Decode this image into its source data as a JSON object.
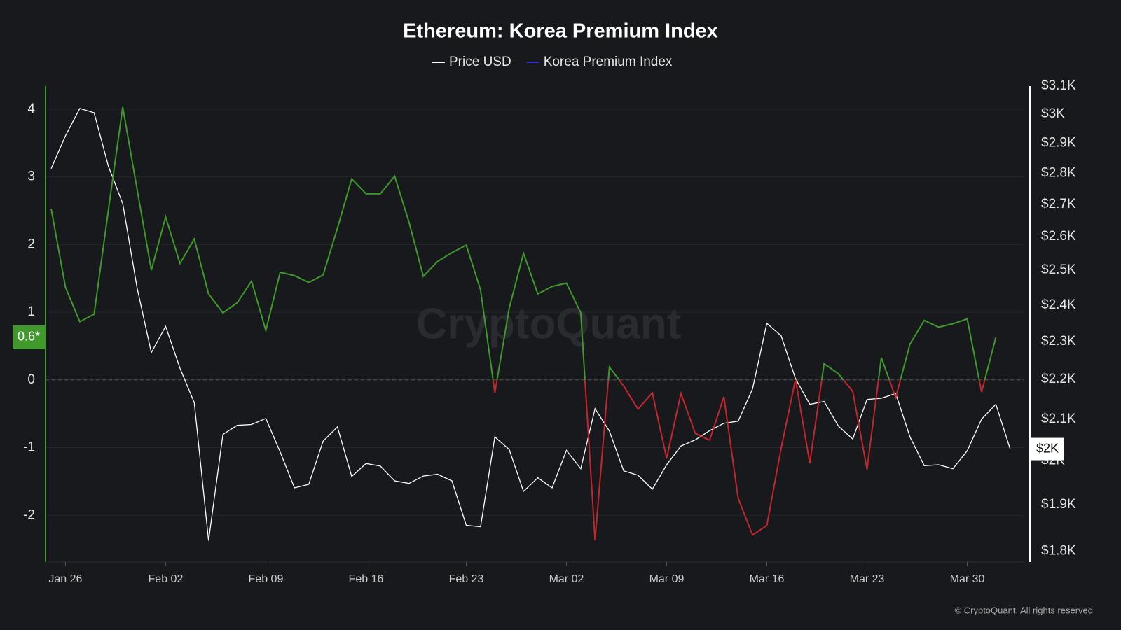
{
  "chart_data": {
    "type": "line",
    "title": "Ethereum: Korea Premium Index",
    "watermark": "CryptoQuant",
    "footer": "© CryptoQuant. All rights reserved",
    "categories": [
      null,
      "Jan 26",
      null,
      null,
      null,
      null,
      null,
      null,
      "Feb 02",
      null,
      null,
      null,
      null,
      null,
      null,
      "Feb 09",
      null,
      null,
      null,
      null,
      null,
      null,
      "Feb 16",
      null,
      null,
      null,
      null,
      null,
      null,
      "Feb 23",
      null,
      null,
      null,
      null,
      null,
      null,
      "Mar 02",
      null,
      null,
      null,
      null,
      null,
      null,
      "Mar 09",
      null,
      null,
      null,
      null,
      null,
      null,
      "Mar 16",
      null,
      null,
      null,
      null,
      null,
      null,
      "Mar 23",
      null,
      null,
      null,
      null,
      null,
      null,
      "Mar 30",
      null,
      null,
      null
    ],
    "series": [
      {
        "name": "Price USD",
        "color": "#ffffff",
        "axis": "y2",
        "current_label": "$2K",
        "values": [
          2815,
          2925,
          3020,
          3005,
          2823,
          2702,
          2449,
          2270,
          2341,
          2229,
          2141,
          1822,
          2063,
          2085,
          2087,
          2102,
          2021,
          1938,
          1946,
          2047,
          2081,
          1964,
          1994,
          1988,
          1954,
          1948,
          1965,
          1969,
          1954,
          1855,
          1852,
          2057,
          2027,
          1930,
          1961,
          1938,
          2025,
          1982,
          2126,
          2071,
          1977,
          1967,
          1935,
          1991,
          2035,
          2050,
          2072,
          2090,
          2095,
          2176,
          2349,
          2315,
          2202,
          2137,
          2144,
          2083,
          2052,
          2149,
          2152,
          2164,
          2057,
          1989,
          1991,
          1982,
          2024,
          2100,
          2137,
          2028
        ]
      },
      {
        "name": "Korea Premium Index",
        "color": "#3b2fd1",
        "positive_color": "#3f9a2b",
        "negative_color": "#c0282d",
        "current_label": "0.6*",
        "values": [
          2.53,
          1.37,
          0.86,
          0.97,
          2.51,
          4.03,
          2.82,
          1.62,
          2.41,
          1.72,
          2.08,
          1.27,
          0.99,
          1.14,
          1.46,
          0.73,
          1.59,
          1.54,
          1.44,
          1.55,
          2.24,
          2.97,
          2.75,
          2.75,
          3.01,
          2.33,
          1.53,
          1.75,
          1.88,
          1.99,
          1.33,
          -0.19,
          1.06,
          1.87,
          1.27,
          1.38,
          1.43,
          0.99,
          -2.37,
          0.19,
          -0.09,
          -0.43,
          -0.19,
          -1.16,
          -0.2,
          -0.79,
          -0.89,
          -0.25,
          -1.75,
          -2.29,
          -2.15,
          -1.01,
          0.01,
          -1.23,
          0.24,
          0.09,
          -0.17,
          -1.32,
          0.33,
          -0.26,
          0.53,
          0.88,
          0.78,
          0.83,
          0.9,
          -0.18,
          0.63,
          null
        ]
      }
    ],
    "ylim": [
      -2.69,
      4.34
    ],
    "yticks": [
      -2,
      -1,
      0,
      1,
      2,
      3,
      4
    ],
    "y2lim": [
      1777,
      3100
    ],
    "y2scale": "log",
    "y2ticks": [
      {
        "value": 1800,
        "label": "$1.8K"
      },
      {
        "value": 1900,
        "label": "$1.9K"
      },
      {
        "value": 2000,
        "label": "$2K"
      },
      {
        "value": 2100,
        "label": "$2.1K"
      },
      {
        "value": 2200,
        "label": "$2.2K"
      },
      {
        "value": 2300,
        "label": "$2.3K"
      },
      {
        "value": 2400,
        "label": "$2.4K"
      },
      {
        "value": 2500,
        "label": "$2.5K"
      },
      {
        "value": 2600,
        "label": "$2.6K"
      },
      {
        "value": 2700,
        "label": "$2.7K"
      },
      {
        "value": 2800,
        "label": "$2.8K"
      },
      {
        "value": 2900,
        "label": "$2.9K"
      },
      {
        "value": 3000,
        "label": "$3K"
      },
      {
        "value": 3100,
        "label": "$3.1K"
      }
    ],
    "grid": true,
    "zero_line": true
  }
}
